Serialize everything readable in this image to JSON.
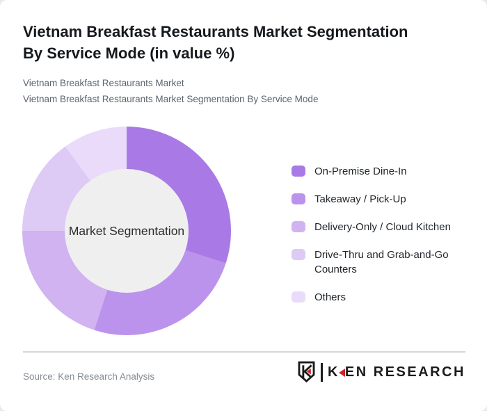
{
  "header": {
    "title_line1": "Vietnam Breakfast Restaurants Market Segmentation",
    "title_line2": "By Service Mode (in value %)",
    "subtitle_line1": "Vietnam Breakfast Restaurants Market",
    "subtitle_line2": "Vietnam Breakfast Restaurants Market Segmentation By Service Mode"
  },
  "chart_data": {
    "type": "pie",
    "style": "donut",
    "title": "Vietnam Breakfast Restaurants Market Segmentation By Service Mode (in value %)",
    "center_label": "Market Segmentation",
    "center_bg": "#f0eff0",
    "categories": [
      "On-Premise Dine-In",
      "Takeaway / Pick-Up",
      "Delivery-Only / Cloud Kitchen",
      "Drive-Thru and Grab-and-Go Counters",
      "Others"
    ],
    "values": [
      30,
      25,
      20,
      15,
      10
    ],
    "unit": "value %",
    "colors": [
      "#a97ae5",
      "#bc93ec",
      "#d0b3f0",
      "#ddcaf5",
      "#ebdbfa"
    ],
    "start_angle_deg": 0,
    "legend_position": "right"
  },
  "footer": {
    "source": "Source: Ken Research Analysis",
    "logo_text_k": "K",
    "logo_text_rest": "EN RESEARCH",
    "logo_accent_color": "#c9252c"
  }
}
